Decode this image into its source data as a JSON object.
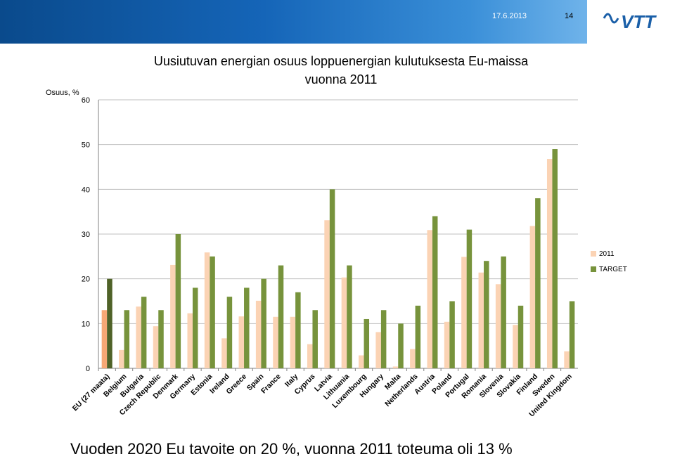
{
  "header": {
    "date": "17.6.2013",
    "page_number": "14",
    "logo_text": "VTT"
  },
  "footer": {
    "text": "Vuoden 2020 Eu tavoite on 20 %, vuonna 2011 toteuma oli 13 %"
  },
  "colors": {
    "bar_2011": "#fbd3b4",
    "bar_2011_eu": "#f7a876",
    "bar_target": "#77933c",
    "bar_target_eu": "#4f6228",
    "header_band": "#1565b8",
    "logo": "#1a5fa8"
  },
  "chart_data": {
    "type": "bar",
    "title_line1": "Uusiutuvan energian osuus loppuenergian kulutuksesta Eu-maissa",
    "title_line2": "vuonna 2011",
    "ylabel": "Osuus, %",
    "ylim": [
      0,
      60
    ],
    "yticks": [
      0,
      10,
      20,
      30,
      40,
      50,
      60
    ],
    "grid": true,
    "legend_position": "right",
    "categories": [
      "EU (27 maata)",
      "Belgium",
      "Bulgaria",
      "Czech Republic",
      "Denmark",
      "Germany",
      "Estonia",
      "Ireland",
      "Greece",
      "Spain",
      "France",
      "Italy",
      "Cyprus",
      "Latvia",
      "Lithuania",
      "Luxembourg",
      "Hungary",
      "Malta",
      "Netherlands",
      "Austria",
      "Poland",
      "Portugal",
      "Romania",
      "Slovenia",
      "Slovakia",
      "Finland",
      "Sweden",
      "United Kingdom"
    ],
    "series": [
      {
        "name": "2011",
        "values": [
          13,
          4.1,
          13.8,
          9.4,
          23.1,
          12.3,
          25.9,
          6.7,
          11.6,
          15.1,
          11.5,
          11.5,
          5.4,
          33.1,
          20.3,
          2.9,
          8.1,
          0.4,
          4.3,
          30.9,
          10.4,
          24.9,
          21.4,
          18.8,
          9.7,
          31.8,
          46.8,
          3.8
        ]
      },
      {
        "name": "TARGET",
        "values": [
          20,
          13,
          16,
          13,
          30,
          18,
          25,
          16,
          18,
          20,
          23,
          17,
          13,
          40,
          23,
          11,
          13,
          10,
          14,
          34,
          15,
          31,
          24,
          25,
          14,
          38,
          49,
          15
        ]
      }
    ]
  }
}
